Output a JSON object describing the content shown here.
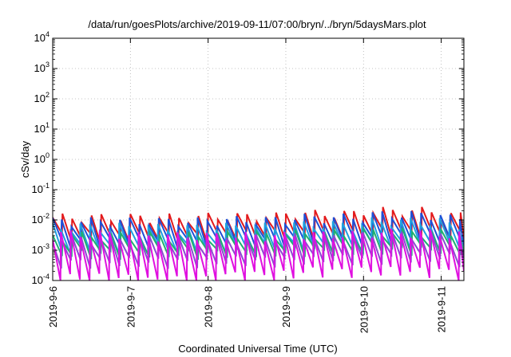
{
  "chart_data": {
    "type": "line",
    "title": "/data/run/goesPlots/archive/2019-09-11/07:00/bryn/../bryn/5daysMars.plot",
    "xlabel": "Coordinated Universal Time (UTC)",
    "ylabel": "cSv/day",
    "yscale": "log",
    "ylim": [
      0.0001,
      10000
    ],
    "xlim": [
      "2019-09-06T00:00",
      "2019-09-11T07:00"
    ],
    "grid": true,
    "legend": "none",
    "x_ticks": [
      "2019-9-6",
      "2019-9-7",
      "2019-9-8",
      "2019-9-9",
      "2019-9-10",
      "2019-9-11"
    ],
    "y_ticks": [
      {
        "base": "10",
        "exp": "-4",
        "value": 0.0001
      },
      {
        "base": "10",
        "exp": "-3",
        "value": 0.001
      },
      {
        "base": "10",
        "exp": "-2",
        "value": 0.01
      },
      {
        "base": "10",
        "exp": "-1",
        "value": 0.1
      },
      {
        "base": "10",
        "exp": "0",
        "value": 1
      },
      {
        "base": "10",
        "exp": "1",
        "value": 10
      },
      {
        "base": "10",
        "exp": "2",
        "value": 100
      },
      {
        "base": "10",
        "exp": "3",
        "value": 1000
      },
      {
        "base": "10",
        "exp": "4",
        "value": 10000
      }
    ],
    "sawtooth_period_hours": 3,
    "series": [
      {
        "color": "#e31a1c",
        "high": [
          0.012,
          0.012,
          0.013,
          0.016,
          0.02,
          0.014
        ],
        "low": [
          0.0025,
          0.0025,
          0.003,
          0.003,
          0.0035,
          0.003
        ]
      },
      {
        "color": "#1f4fd6",
        "high": [
          0.009,
          0.009,
          0.01,
          0.012,
          0.015,
          0.011
        ],
        "low": [
          0.0018,
          0.0018,
          0.002,
          0.0022,
          0.0025,
          0.002
        ]
      },
      {
        "color": "#1fa0e0",
        "high": [
          0.006,
          0.0055,
          0.006,
          0.007,
          0.009,
          0.007
        ],
        "low": [
          0.0012,
          0.0012,
          0.0013,
          0.0014,
          0.0016,
          0.0013
        ]
      },
      {
        "color": "#20b070",
        "high": [
          0.003,
          0.003,
          0.0032,
          0.0035,
          0.004,
          0.0035
        ],
        "low": [
          0.0008,
          0.0008,
          0.0009,
          0.001,
          0.0011,
          0.0009
        ]
      },
      {
        "color": "#8a4cd0",
        "high": [
          0.0025,
          0.0024,
          0.0026,
          0.003,
          0.0033,
          0.0028
        ],
        "low": [
          0.0004,
          0.0004,
          0.00045,
          0.0005,
          0.00055,
          0.00045
        ]
      },
      {
        "color": "#e010e0",
        "high": [
          0.0035,
          0.003,
          0.003,
          0.0033,
          0.0038,
          0.0032
        ],
        "low": [
          0.00012,
          0.0001,
          0.00015,
          0.0002,
          0.0002,
          0.00015
        ]
      }
    ]
  }
}
